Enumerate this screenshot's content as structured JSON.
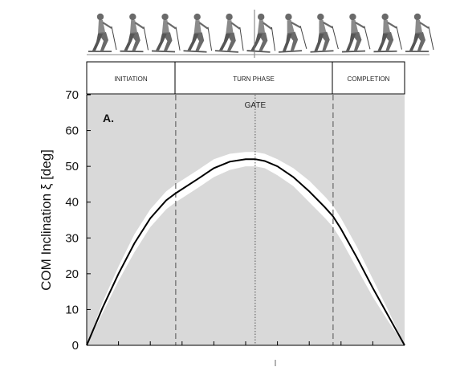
{
  "figure": {
    "panel_label": "A.",
    "gate_label": "GATE",
    "phases": [
      "INITIATION",
      "TURN PHASE",
      "COMPLETION"
    ],
    "skier_icons": [
      "skier-figure-icon"
    ]
  },
  "chart_data": {
    "type": "line",
    "title": "",
    "xlabel": "",
    "ylabel": "COM Inclination ξ [deg]",
    "ylim": [
      0,
      70
    ],
    "yticks": [
      0,
      10,
      20,
      30,
      40,
      50,
      60,
      70
    ],
    "xlim": [
      0,
      100
    ],
    "x_minor_ticks": [
      10,
      20,
      30,
      40,
      50,
      60,
      70,
      80,
      90
    ],
    "phase_boundaries": [
      28,
      77.5
    ],
    "gate_x": 53,
    "background_color": "#d9d9d9",
    "band_color": "#ffffff",
    "line_color": "#000000",
    "grid": false,
    "series": [
      {
        "x": [
          0,
          5,
          10,
          15,
          20,
          25,
          28,
          35,
          40,
          45,
          50,
          53,
          56,
          60,
          65,
          70,
          75,
          77.5,
          80,
          85,
          90,
          95,
          100
        ],
        "mean": [
          0,
          10.5,
          20,
          28.5,
          35.5,
          40.5,
          42.5,
          46.5,
          49.5,
          51.3,
          52,
          52,
          51.5,
          50,
          47,
          43,
          38.5,
          36,
          32.5,
          24.5,
          16,
          8,
          0
        ],
        "upper": [
          0,
          12,
          22,
          31,
          38,
          43,
          45,
          49,
          52,
          53.5,
          54,
          54,
          53.5,
          52,
          49.5,
          46,
          41.5,
          39,
          35.5,
          27.5,
          18.5,
          9.5,
          0
        ],
        "lower": [
          0,
          9,
          18,
          26,
          33,
          38,
          40,
          44,
          47,
          49,
          50,
          50,
          49.5,
          47.5,
          44.5,
          40,
          35.5,
          33,
          29.5,
          21.5,
          13.5,
          6.5,
          0
        ]
      }
    ]
  }
}
